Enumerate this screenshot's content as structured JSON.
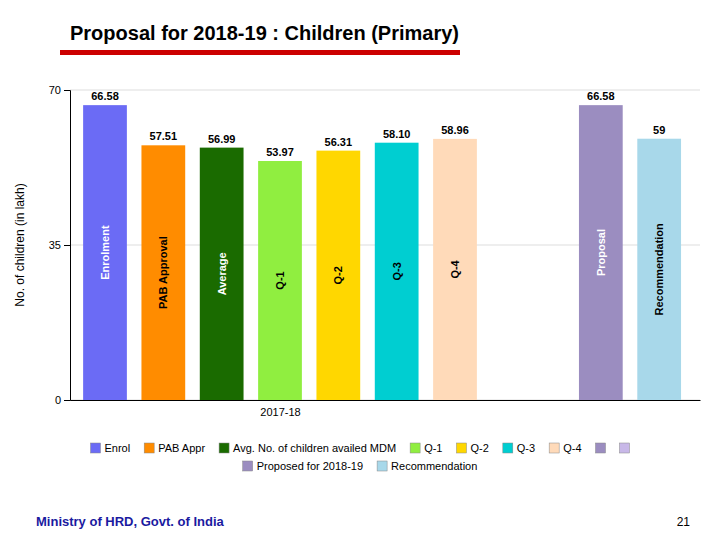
{
  "chart_data": {
    "type": "bar",
    "title": "Proposal for 2018-19 : Children (Primary)",
    "xlabel": "2017-18",
    "ylabel": "No. of children (in lakh)",
    "categories": [
      "Enrolment",
      "PAB Approval",
      "Average",
      "Q-1",
      "Q-2",
      "Q-3",
      "Q-4",
      "Proposal",
      "Recommendation"
    ],
    "values": [
      66.58,
      57.51,
      56.99,
      53.97,
      56.31,
      58.1,
      58.96,
      66.58,
      59
    ],
    "value_labels": [
      "66.58",
      "57.51",
      "56.99",
      "53.97",
      "56.31",
      "58.10",
      "58.96",
      "66.58",
      "59"
    ],
    "colors": [
      "#6B6BF5",
      "#FF8C00",
      "#1A6B00",
      "#90EE40",
      "#FFD700",
      "#00CED1",
      "#FFDAB9",
      "#9B8DC0",
      "#A8D8EA"
    ],
    "ylim": [
      0,
      70
    ],
    "yticks": [
      0,
      35,
      70
    ],
    "grid": true,
    "data_labels": true,
    "legend_entries": [
      {
        "label": "Enrol",
        "color": "#6B6BF5"
      },
      {
        "label": "PAB Appr",
        "color": "#FF8C00"
      },
      {
        "label": "Avg. No. of children availed MDM",
        "color": "#1A6B00"
      },
      {
        "label": "Q-1",
        "color": "#90EE40"
      },
      {
        "label": "Q-2",
        "color": "#FFD700"
      },
      {
        "label": "Q-3",
        "color": "#00CED1"
      },
      {
        "label": "Q-4",
        "color": "#FFDAB9"
      },
      {
        "label": null,
        "color": "#9B8DC0"
      },
      {
        "label": null,
        "color": "#C8B8E8"
      },
      {
        "label": "Proposed for 2018-19",
        "color": "#9B8DC0"
      },
      {
        "label": "Recommendation",
        "color": "#A8D8EA"
      }
    ],
    "footer": "Ministry of HRD, Govt. of India",
    "page_number": "21"
  }
}
